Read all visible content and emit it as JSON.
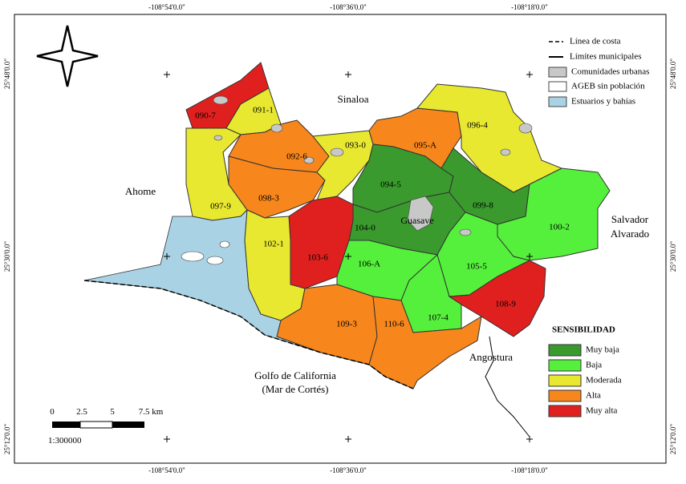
{
  "map": {
    "coordinates": {
      "longitudes": [
        "-108°54'0.0\"",
        "-108°36'0.0\"",
        "-108°18'0.0\""
      ],
      "latitudes": [
        "25°48'0.0\"",
        "25°30'0.0\"",
        "25°12'0.0\""
      ]
    },
    "places": {
      "sinaloa": "Sinaloa",
      "ahome": "Ahome",
      "salvador_alvarado": [
        "Salvador",
        "Alvarado"
      ],
      "guasave": "Guasave",
      "angostura": "Angostura",
      "gulf": [
        "Golfo de California",
        "(Mar de Cortés)"
      ]
    },
    "legend": {
      "coast_line": "Línea de costa",
      "municipal_limits": "Límites municipales",
      "urban": "Comunidades urbanas",
      "no_population": "AGEB sin población",
      "estuaries": "Estuarios y bahías"
    },
    "sensitivity": {
      "title": "SENSIBILIDAD",
      "classes": [
        {
          "label": "Muy baja",
          "color": "#3a9a2e"
        },
        {
          "label": "Baja",
          "color": "#55f03c"
        },
        {
          "label": "Moderada",
          "color": "#e8e830"
        },
        {
          "label": "Alta",
          "color": "#f7861c"
        },
        {
          "label": "Muy alta",
          "color": "#e0201f"
        }
      ]
    },
    "regions": [
      {
        "id": "090-7",
        "sensitivity": "Muy alta"
      },
      {
        "id": "091-1",
        "sensitivity": "Moderada"
      },
      {
        "id": "097-9",
        "sensitivity": "Moderada"
      },
      {
        "id": "092-6",
        "sensitivity": "Alta"
      },
      {
        "id": "098-3",
        "sensitivity": "Alta"
      },
      {
        "id": "093-0",
        "sensitivity": "Moderada"
      },
      {
        "id": "095-A",
        "sensitivity": "Alta"
      },
      {
        "id": "096-4",
        "sensitivity": "Moderada"
      },
      {
        "id": "094-5",
        "sensitivity": "Muy baja"
      },
      {
        "id": "099-8",
        "sensitivity": "Muy baja"
      },
      {
        "id": "100-2",
        "sensitivity": "Baja"
      },
      {
        "id": "104-0",
        "sensitivity": "Muy baja"
      },
      {
        "id": "103-6",
        "sensitivity": "Muy alta"
      },
      {
        "id": "102-1",
        "sensitivity": "Moderada"
      },
      {
        "id": "106-A",
        "sensitivity": "Baja"
      },
      {
        "id": "105-5",
        "sensitivity": "Baja"
      },
      {
        "id": "107-4",
        "sensitivity": "Baja"
      },
      {
        "id": "108-9",
        "sensitivity": "Muy alta"
      },
      {
        "id": "109-3",
        "sensitivity": "Alta"
      },
      {
        "id": "110-6",
        "sensitivity": "Alta"
      }
    ],
    "scale_bar": {
      "labels": [
        "0",
        "2.5",
        "5",
        "7.5 km"
      ],
      "ratio": "1:300000"
    }
  }
}
